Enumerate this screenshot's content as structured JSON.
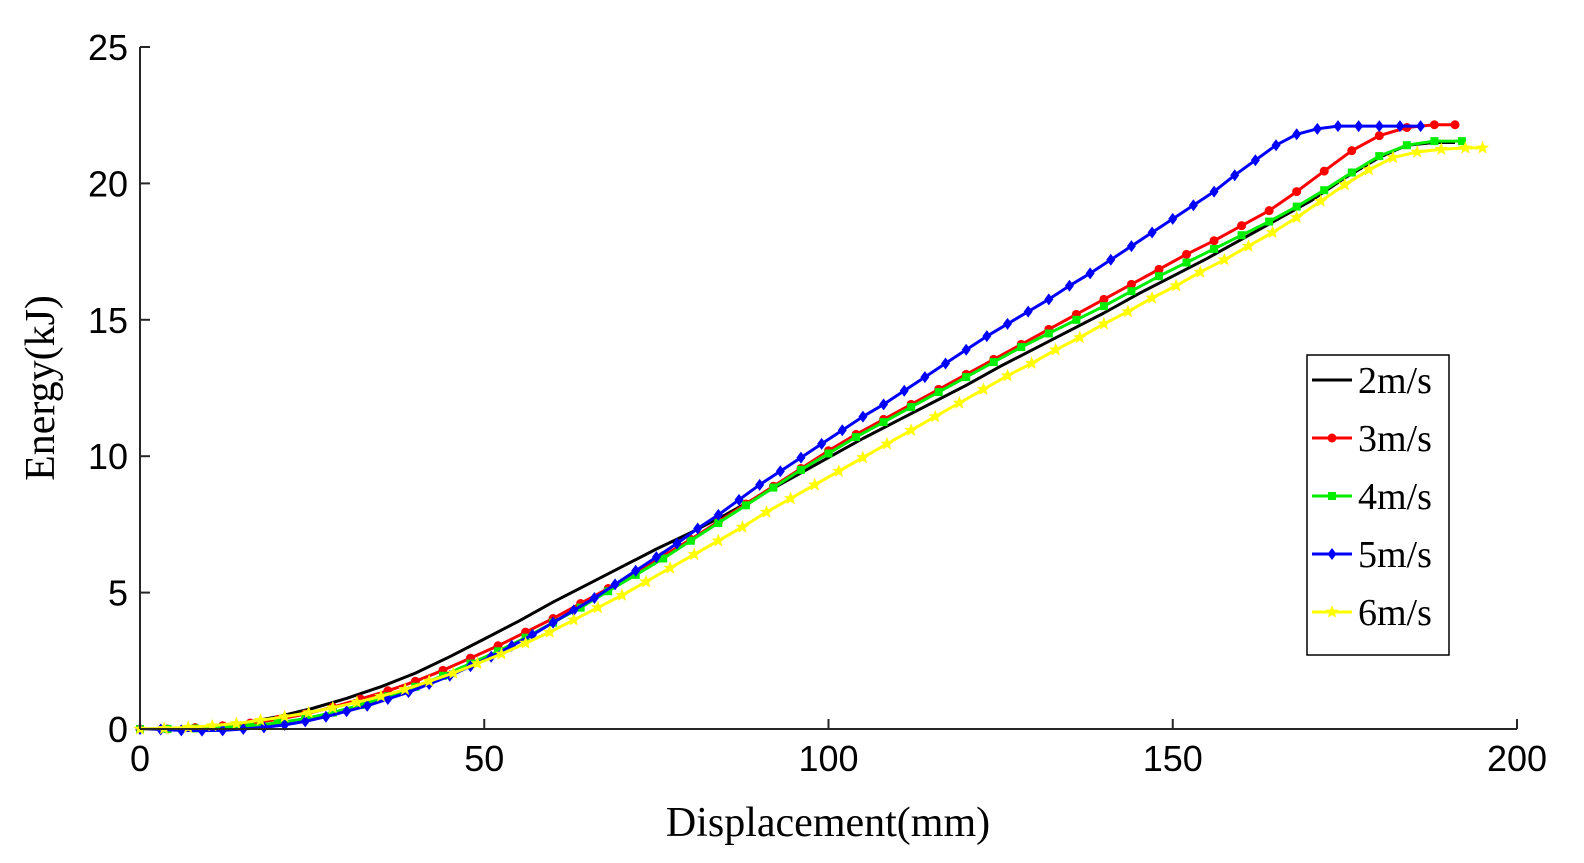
{
  "chart_data": {
    "type": "line",
    "xlabel": "Displacement(mm)",
    "ylabel": "Energy(kJ)",
    "xlim": [
      0,
      200
    ],
    "ylim": [
      0,
      25
    ],
    "xticks": [
      0,
      50,
      100,
      150,
      200
    ],
    "yticks": [
      0,
      5,
      10,
      15,
      20,
      25
    ],
    "grid": false,
    "legend_position": "right",
    "series": [
      {
        "name": "2m/s",
        "color": "#000000",
        "marker": "none",
        "x": [
          0,
          5,
          10,
          15,
          20,
          25,
          30,
          35,
          40,
          45,
          50,
          55,
          60,
          65,
          70,
          75,
          80,
          85,
          90,
          95,
          100,
          105,
          110,
          115,
          120,
          125,
          130,
          135,
          140,
          145,
          150,
          155,
          160,
          165,
          170,
          175,
          180,
          184,
          188,
          191
        ],
        "y": [
          0,
          0.02,
          0.08,
          0.22,
          0.45,
          0.75,
          1.12,
          1.55,
          2.05,
          2.65,
          3.3,
          3.95,
          4.65,
          5.3,
          5.95,
          6.6,
          7.2,
          7.85,
          8.55,
          9.25,
          9.95,
          10.65,
          11.3,
          11.95,
          12.6,
          13.3,
          13.95,
          14.6,
          15.25,
          15.95,
          16.6,
          17.25,
          17.95,
          18.65,
          19.35,
          20.2,
          20.95,
          21.4,
          21.5,
          21.5
        ]
      },
      {
        "name": "3m/s",
        "color": "#ff0000",
        "marker": "circle",
        "x": [
          0,
          4,
          8,
          12,
          16,
          20,
          24,
          28,
          32,
          36,
          40,
          44,
          48,
          52,
          56,
          60,
          64,
          68,
          72,
          76,
          80,
          84,
          88,
          92,
          96,
          100,
          104,
          108,
          112,
          116,
          120,
          124,
          128,
          132,
          136,
          140,
          144,
          148,
          152,
          156,
          160,
          164,
          168,
          172,
          176,
          180,
          184,
          188,
          191
        ],
        "y": [
          0,
          0,
          0.05,
          0.12,
          0.22,
          0.35,
          0.55,
          0.8,
          1.1,
          1.4,
          1.75,
          2.15,
          2.6,
          3.05,
          3.55,
          4.05,
          4.6,
          5.15,
          5.75,
          6.35,
          6.95,
          7.6,
          8.25,
          8.9,
          9.55,
          10.2,
          10.8,
          11.35,
          11.9,
          12.45,
          13.0,
          13.55,
          14.1,
          14.65,
          15.2,
          15.75,
          16.3,
          16.85,
          17.4,
          17.9,
          18.45,
          19.0,
          19.7,
          20.45,
          21.2,
          21.75,
          22.05,
          22.15,
          22.15
        ]
      },
      {
        "name": "4m/s",
        "color": "#00ee00",
        "marker": "square",
        "x": [
          0,
          4,
          8,
          12,
          16,
          20,
          24,
          28,
          32,
          36,
          40,
          44,
          48,
          52,
          56,
          60,
          64,
          68,
          72,
          76,
          80,
          84,
          88,
          92,
          96,
          100,
          104,
          108,
          112,
          116,
          120,
          124,
          128,
          132,
          136,
          140,
          144,
          148,
          152,
          156,
          160,
          164,
          168,
          172,
          176,
          180,
          184,
          188,
          192
        ],
        "y": [
          0,
          0,
          0.02,
          0.06,
          0.12,
          0.22,
          0.38,
          0.6,
          0.88,
          1.2,
          1.55,
          1.95,
          2.4,
          2.85,
          3.35,
          3.9,
          4.45,
          5.05,
          5.65,
          6.25,
          6.9,
          7.55,
          8.2,
          8.85,
          9.5,
          10.1,
          10.7,
          11.25,
          11.8,
          12.35,
          12.9,
          13.45,
          14.0,
          14.5,
          15.0,
          15.5,
          16.05,
          16.6,
          17.1,
          17.6,
          18.1,
          18.6,
          19.15,
          19.75,
          20.4,
          21.0,
          21.4,
          21.55,
          21.55
        ]
      },
      {
        "name": "5m/s",
        "color": "#0000ff",
        "marker": "diamond",
        "x": [
          0,
          3,
          6,
          9,
          12,
          15,
          18,
          21,
          24,
          27,
          30,
          33,
          36,
          39,
          42,
          45,
          48,
          51,
          54,
          57,
          60,
          63,
          66,
          69,
          72,
          75,
          78,
          81,
          84,
          87,
          90,
          93,
          96,
          99,
          102,
          105,
          108,
          111,
          114,
          117,
          120,
          123,
          126,
          129,
          132,
          135,
          138,
          141,
          144,
          147,
          150,
          153,
          156,
          159,
          162,
          165,
          168,
          171,
          174,
          177,
          180,
          183,
          186
        ],
        "y": [
          0,
          -0.02,
          -0.05,
          -0.06,
          -0.05,
          0,
          0.06,
          0.15,
          0.28,
          0.45,
          0.65,
          0.85,
          1.1,
          1.35,
          1.65,
          1.95,
          2.3,
          2.65,
          3.05,
          3.45,
          3.9,
          4.35,
          4.8,
          5.3,
          5.8,
          6.3,
          6.8,
          7.35,
          7.85,
          8.4,
          8.95,
          9.45,
          9.95,
          10.45,
          10.95,
          11.45,
          11.9,
          12.4,
          12.9,
          13.4,
          13.9,
          14.4,
          14.85,
          15.3,
          15.75,
          16.25,
          16.7,
          17.2,
          17.7,
          18.2,
          18.7,
          19.2,
          19.7,
          20.3,
          20.85,
          21.4,
          21.8,
          22.0,
          22.1,
          22.1,
          22.1,
          22.1,
          22.1
        ]
      },
      {
        "name": "6m/s",
        "color": "#ffff00",
        "marker": "star",
        "x": [
          0,
          3.5,
          7,
          10.5,
          14,
          17.5,
          21,
          24.5,
          28,
          31.5,
          35,
          38.5,
          42,
          45.5,
          49,
          52.5,
          56,
          59.5,
          63,
          66.5,
          70,
          73.5,
          77,
          80.5,
          84,
          87.5,
          91,
          94.5,
          98,
          101.5,
          105,
          108.5,
          112,
          115.5,
          119,
          122.5,
          126,
          129.5,
          133,
          136.5,
          140,
          143.5,
          147,
          150.5,
          154,
          157.5,
          161,
          164.5,
          168,
          171.5,
          175,
          178.5,
          182,
          185.5,
          189,
          192.5,
          195
        ],
        "y": [
          0,
          0.02,
          0.06,
          0.12,
          0.2,
          0.32,
          0.45,
          0.6,
          0.78,
          0.98,
          1.2,
          1.45,
          1.75,
          2.05,
          2.4,
          2.75,
          3.15,
          3.55,
          4.0,
          4.45,
          4.9,
          5.4,
          5.9,
          6.4,
          6.9,
          7.4,
          7.95,
          8.45,
          8.95,
          9.45,
          9.95,
          10.45,
          10.95,
          11.45,
          11.95,
          12.45,
          12.95,
          13.4,
          13.9,
          14.35,
          14.85,
          15.3,
          15.8,
          16.25,
          16.75,
          17.2,
          17.7,
          18.2,
          18.75,
          19.35,
          19.95,
          20.5,
          20.95,
          21.15,
          21.25,
          21.3,
          21.3
        ]
      }
    ]
  }
}
